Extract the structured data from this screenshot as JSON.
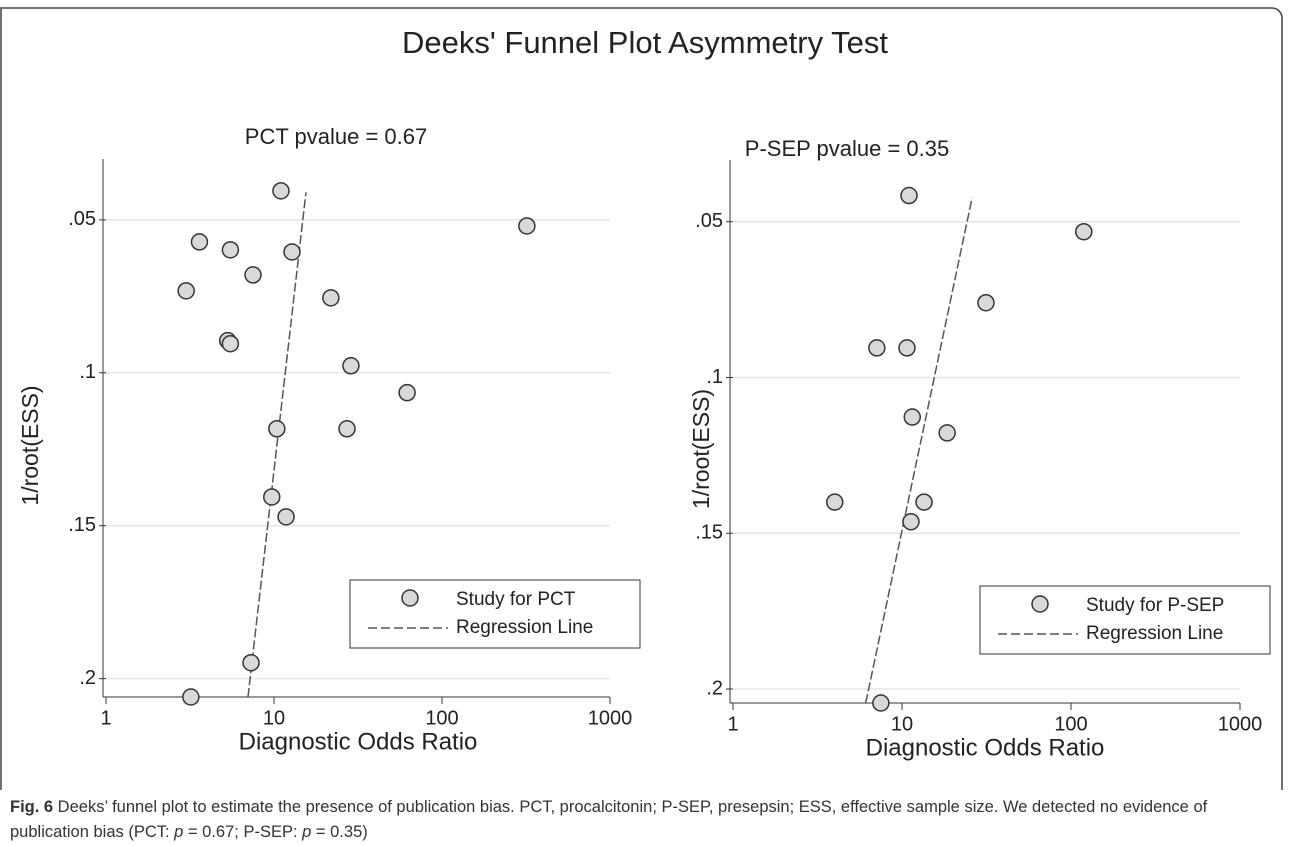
{
  "title": "Deeks' Funnel Plot Asymmetry Test",
  "caption": {
    "label": "Fig. 6",
    "parts": [
      " Deeks’ funnel plot to estimate the presence of publication bias. PCT, procalcitonin; P-SEP, presepsin; ESS, effective sample size. We detected no evidence of publication bias (PCT: ",
      "p",
      " = 0.67; P-SEP: ",
      "p",
      " = 0.35)"
    ]
  },
  "chart_data": [
    {
      "type": "scatter",
      "subtitle": "PCT pvalue = 0.67",
      "xlabel": "Diagnostic Odds Ratio",
      "ylabel": "1/root(ESS)",
      "xscale": "log",
      "xlim": [
        1,
        1000
      ],
      "xticks": [
        1,
        10,
        100,
        1000
      ],
      "ylim": [
        0.035,
        0.206
      ],
      "y_inverted": true,
      "yticks": [
        {
          "value": 0.05,
          "label": ".05"
        },
        {
          "value": 0.1,
          "label": ".1"
        },
        {
          "value": 0.15,
          "label": ".15"
        },
        {
          "value": 0.2,
          "label": ".2"
        }
      ],
      "grid": true,
      "legend": "lower right",
      "series": [
        {
          "name": "Study for PCT",
          "color": "#d9d9d9",
          "x": [
            11.0,
            3.6,
            5.5,
            12.8,
            7.5,
            3.0,
            21.8,
            5.3,
            5.5,
            28.7,
            62,
            10.4,
            27.2,
            9.7,
            11.8,
            7.3,
            3.2,
            320
          ],
          "y": [
            0.0405,
            0.0572,
            0.0598,
            0.0605,
            0.068,
            0.0732,
            0.0755,
            0.0895,
            0.0905,
            0.0977,
            0.1065,
            0.1183,
            0.1183,
            0.1406,
            0.1471,
            0.1948,
            0.206,
            0.052
          ]
        }
      ],
      "regression": {
        "name": "Regression Line",
        "color": "#555555",
        "x": [
          7.0,
          15.5
        ],
        "y": [
          0.206,
          0.041
        ]
      }
    },
    {
      "type": "scatter",
      "subtitle": "P-SEP pvalue = 0.35",
      "xlabel": "Diagnostic Odds Ratio",
      "ylabel": "1/root(ESS)",
      "xscale": "log",
      "xlim": [
        1,
        1000
      ],
      "xticks": [
        1,
        10,
        100,
        1000
      ],
      "ylim": [
        0.035,
        0.2045
      ],
      "y_inverted": true,
      "yticks": [
        {
          "value": 0.05,
          "label": ".05"
        },
        {
          "value": 0.1,
          "label": ".1"
        },
        {
          "value": 0.15,
          "label": ".15"
        },
        {
          "value": 0.2,
          "label": ".2"
        }
      ],
      "grid": true,
      "legend": "lower right",
      "series": [
        {
          "name": "Study for P-SEP",
          "color": "#d9d9d9",
          "x": [
            11.0,
            119,
            31.4,
            7.1,
            10.7,
            11.5,
            18.5,
            4.0,
            13.5,
            11.3,
            7.5
          ],
          "y": [
            0.0416,
            0.0532,
            0.076,
            0.0905,
            0.0905,
            0.1127,
            0.1178,
            0.14,
            0.14,
            0.1463,
            0.2045
          ]
        }
      ],
      "regression": {
        "name": "Regression Line",
        "color": "#555555",
        "x": [
          6.1,
          26
        ],
        "y": [
          0.2045,
          0.0423
        ]
      }
    }
  ]
}
